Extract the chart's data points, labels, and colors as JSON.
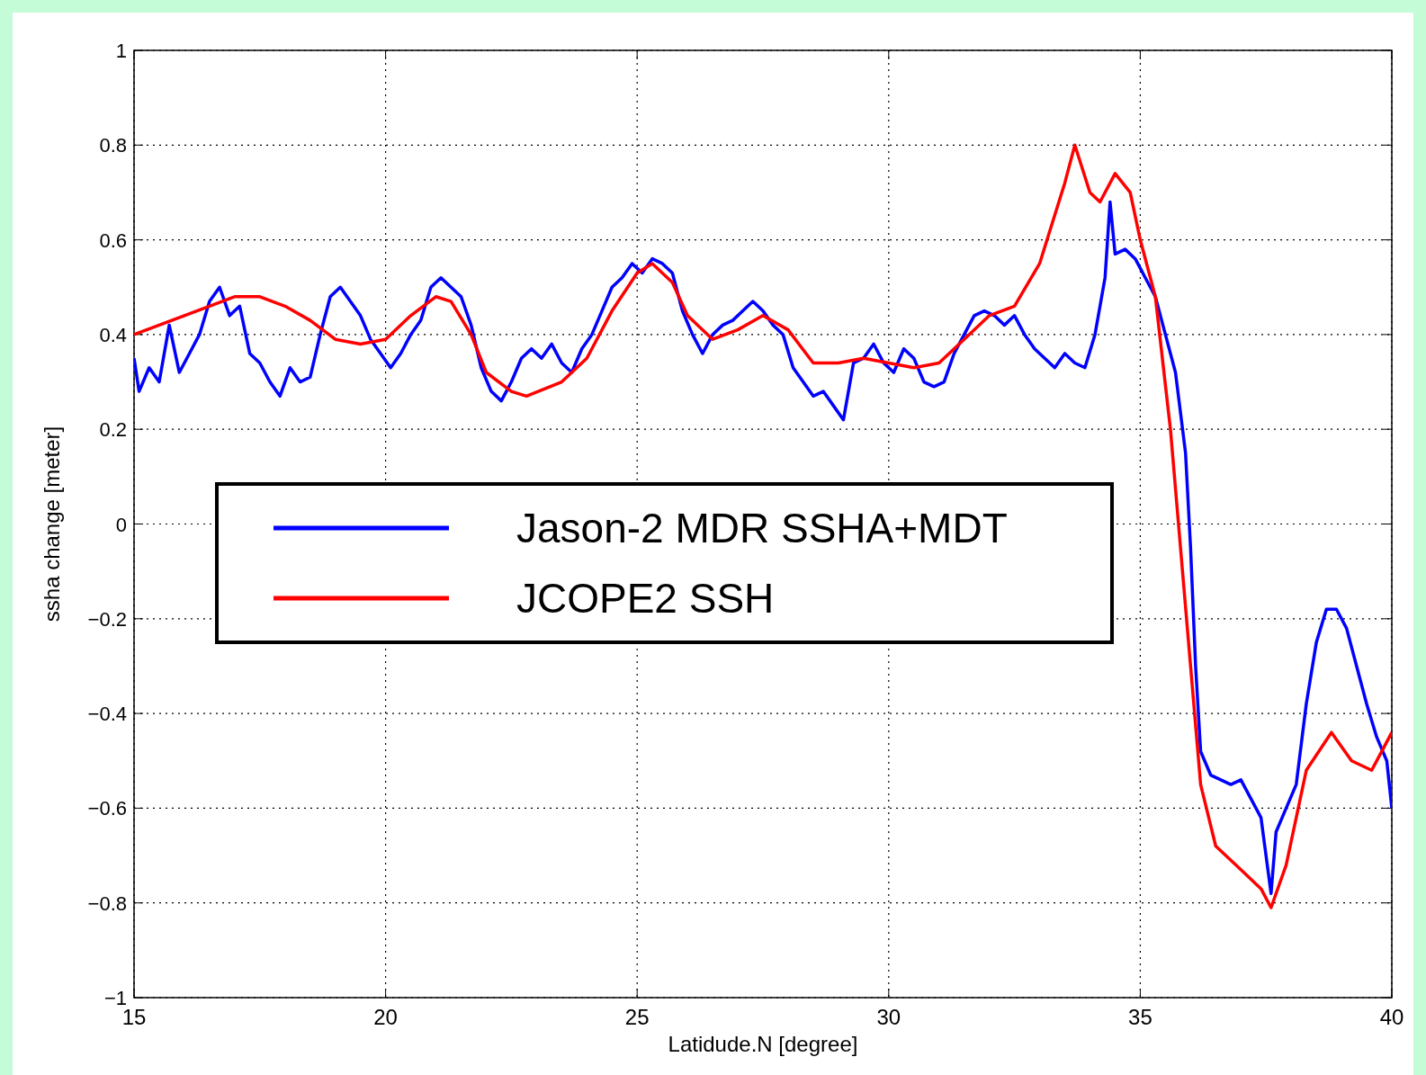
{
  "chart_data": {
    "type": "line",
    "xlabel": "Latidude.N [degree]",
    "ylabel": "ssha change [meter]",
    "xlim": [
      15,
      40
    ],
    "xticks": [
      15,
      20,
      25,
      30,
      35,
      40
    ],
    "ylim": [
      -1,
      1
    ],
    "yticks": [
      -1,
      -0.8,
      -0.6,
      -0.4,
      -0.2,
      0,
      0.2,
      0.4,
      0.6,
      0.8,
      1
    ],
    "grid": true,
    "legend": "left",
    "line_style": "solid",
    "series": [
      {
        "name": "Jason-2 MDR SSHA+MDT",
        "color": "#0000ff",
        "x": [
          15,
          15.1,
          15.3,
          15.5,
          15.7,
          15.9,
          16.1,
          16.3,
          16.5,
          16.7,
          16.9,
          17.1,
          17.3,
          17.5,
          17.7,
          17.9,
          18.1,
          18.3,
          18.5,
          18.7,
          18.9,
          19.1,
          19.3,
          19.5,
          19.7,
          19.9,
          20.1,
          20.3,
          20.5,
          20.7,
          20.9,
          21.1,
          21.3,
          21.5,
          21.7,
          21.9,
          22.1,
          22.3,
          22.5,
          22.7,
          22.9,
          23.1,
          23.3,
          23.5,
          23.7,
          23.9,
          24.1,
          24.3,
          24.5,
          24.7,
          24.9,
          25.1,
          25.3,
          25.5,
          25.7,
          25.9,
          26.1,
          26.3,
          26.5,
          26.7,
          26.9,
          27.1,
          27.3,
          27.5,
          27.7,
          27.9,
          28.1,
          28.3,
          28.5,
          28.7,
          28.9,
          29.1,
          29.3,
          29.5,
          29.7,
          29.9,
          30.1,
          30.3,
          30.5,
          30.7,
          30.9,
          31.1,
          31.3,
          31.5,
          31.7,
          31.9,
          32.1,
          32.3,
          32.5,
          32.7,
          32.9,
          33.1,
          33.3,
          33.5,
          33.7,
          33.9,
          34.1,
          34.3,
          34.4,
          34.5,
          34.7,
          34.9,
          35.1,
          35.3,
          35.5,
          35.7,
          35.9,
          36,
          36.1,
          36.2,
          36.4,
          36.6,
          36.8,
          37,
          37.2,
          37.4,
          37.6,
          37.7,
          37.9,
          38.1,
          38.3,
          38.5,
          38.7,
          38.9,
          39.1,
          39.3,
          39.5,
          39.7,
          39.9,
          40
        ],
        "values": [
          0.35,
          0.28,
          0.33,
          0.3,
          0.42,
          0.32,
          0.36,
          0.4,
          0.47,
          0.5,
          0.44,
          0.46,
          0.36,
          0.34,
          0.3,
          0.27,
          0.33,
          0.3,
          0.31,
          0.4,
          0.48,
          0.5,
          0.47,
          0.44,
          0.39,
          0.36,
          0.33,
          0.36,
          0.4,
          0.43,
          0.5,
          0.52,
          0.5,
          0.48,
          0.42,
          0.33,
          0.28,
          0.26,
          0.3,
          0.35,
          0.37,
          0.35,
          0.38,
          0.34,
          0.32,
          0.37,
          0.4,
          0.45,
          0.5,
          0.52,
          0.55,
          0.53,
          0.56,
          0.55,
          0.53,
          0.45,
          0.4,
          0.36,
          0.4,
          0.42,
          0.43,
          0.45,
          0.47,
          0.45,
          0.42,
          0.4,
          0.33,
          0.3,
          0.27,
          0.28,
          0.25,
          0.22,
          0.34,
          0.35,
          0.38,
          0.34,
          0.32,
          0.37,
          0.35,
          0.3,
          0.29,
          0.3,
          0.36,
          0.4,
          0.44,
          0.45,
          0.44,
          0.42,
          0.44,
          0.4,
          0.37,
          0.35,
          0.33,
          0.36,
          0.34,
          0.33,
          0.4,
          0.52,
          0.68,
          0.57,
          0.58,
          0.56,
          0.52,
          0.48,
          0.4,
          0.32,
          0.15,
          -0.05,
          -0.3,
          -0.48,
          -0.53,
          -0.54,
          -0.55,
          -0.54,
          -0.58,
          -0.62,
          -0.78,
          -0.65,
          -0.6,
          -0.55,
          -0.38,
          -0.25,
          -0.18,
          -0.18,
          -0.22,
          -0.3,
          -0.38,
          -0.45,
          -0.5,
          -0.6
        ]
      },
      {
        "name": "JCOPE2 SSH",
        "color": "#ff0000",
        "x": [
          15,
          15.5,
          16,
          16.5,
          17,
          17.5,
          18,
          18.5,
          19,
          19.5,
          20,
          20.5,
          21,
          21.3,
          21.7,
          22,
          22.5,
          22.8,
          23.5,
          24,
          24.5,
          25,
          25.3,
          25.7,
          26,
          26.5,
          27,
          27.5,
          28,
          28.5,
          29,
          29.5,
          30,
          30.5,
          31,
          31.5,
          32,
          32.5,
          33,
          33.5,
          33.7,
          34,
          34.2,
          34.5,
          34.8,
          35,
          35.3,
          35.6,
          35.8,
          36,
          36.2,
          36.5,
          37,
          37.4,
          37.6,
          37.9,
          38.3,
          38.8,
          39.2,
          39.6,
          40
        ],
        "values": [
          0.4,
          0.42,
          0.44,
          0.46,
          0.48,
          0.48,
          0.46,
          0.43,
          0.39,
          0.38,
          0.39,
          0.44,
          0.48,
          0.47,
          0.4,
          0.32,
          0.28,
          0.27,
          0.3,
          0.35,
          0.45,
          0.53,
          0.55,
          0.51,
          0.44,
          0.39,
          0.41,
          0.44,
          0.41,
          0.34,
          0.34,
          0.35,
          0.34,
          0.33,
          0.34,
          0.39,
          0.44,
          0.46,
          0.55,
          0.72,
          0.8,
          0.7,
          0.68,
          0.74,
          0.7,
          0.6,
          0.48,
          0.2,
          -0.05,
          -0.3,
          -0.55,
          -0.68,
          -0.73,
          -0.77,
          -0.81,
          -0.72,
          -0.52,
          -0.44,
          -0.5,
          -0.52,
          -0.44
        ]
      }
    ]
  }
}
